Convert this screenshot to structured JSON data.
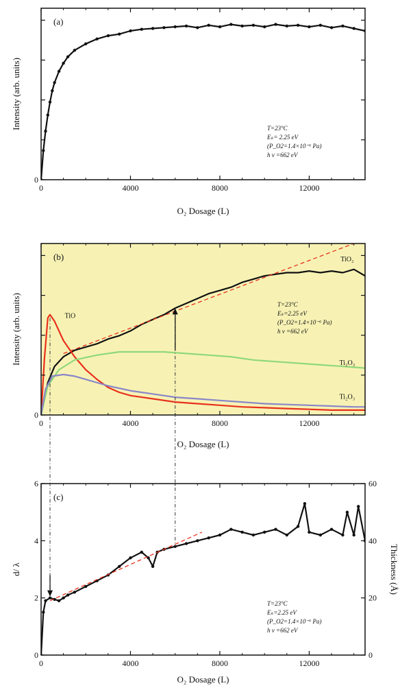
{
  "chart_data": [
    {
      "id": "a",
      "type": "line",
      "panel_label": "(a)",
      "xlabel": "O₂ Dosage (L)",
      "ylabel": "Intensity (arb. units)",
      "xlim": [
        0,
        14500
      ],
      "ylim": [
        0,
        1.06
      ],
      "x_ticks": [
        0,
        4000,
        8000,
        12000
      ],
      "x_tick_labels": [
        "0",
        "4000",
        "8000",
        "12000"
      ],
      "y_ticks": [
        0
      ],
      "y_tick_labels": [
        "0"
      ],
      "annotations": [
        "T=23°C",
        "Eₖ= 2.25 eV",
        "(P_O2=1.4×10⁻⁶ Pa)",
        "h ν =662 eV"
      ],
      "series": [
        {
          "color": "#111111",
          "markers": true,
          "points": [
            [
              0,
              0.0
            ],
            [
              100,
              0.18
            ],
            [
              200,
              0.3
            ],
            [
              300,
              0.4
            ],
            [
              400,
              0.48
            ],
            [
              500,
              0.55
            ],
            [
              600,
              0.6
            ],
            [
              800,
              0.67
            ],
            [
              1000,
              0.72
            ],
            [
              1200,
              0.76
            ],
            [
              1500,
              0.8
            ],
            [
              2000,
              0.84
            ],
            [
              2500,
              0.87
            ],
            [
              3000,
              0.89
            ],
            [
              3500,
              0.9
            ],
            [
              4000,
              0.92
            ],
            [
              4500,
              0.93
            ],
            [
              5000,
              0.935
            ],
            [
              5500,
              0.94
            ],
            [
              6000,
              0.945
            ],
            [
              6500,
              0.95
            ],
            [
              7000,
              0.94
            ],
            [
              7500,
              0.955
            ],
            [
              8000,
              0.945
            ],
            [
              8500,
              0.96
            ],
            [
              9000,
              0.95
            ],
            [
              9500,
              0.955
            ],
            [
              10000,
              0.945
            ],
            [
              10500,
              0.96
            ],
            [
              11000,
              0.95
            ],
            [
              11500,
              0.955
            ],
            [
              12000,
              0.945
            ],
            [
              12500,
              0.955
            ],
            [
              13000,
              0.94
            ],
            [
              13500,
              0.95
            ],
            [
              14000,
              0.935
            ],
            [
              14500,
              0.92
            ]
          ]
        }
      ]
    },
    {
      "id": "b",
      "type": "line",
      "panel_label": "(b)",
      "xlabel": "O₂ Dosage (L)",
      "ylabel": "Intensity (arb. units)",
      "xlim": [
        0,
        14500
      ],
      "ylim": [
        0,
        1.06
      ],
      "x_ticks": [
        0,
        4000,
        8000,
        12000
      ],
      "x_tick_labels": [
        "0",
        "4000",
        "8000",
        "12000"
      ],
      "y_ticks": [
        0
      ],
      "y_tick_labels": [
        "0"
      ],
      "background": "#f7f2b4",
      "annotations": [
        "T=23°C",
        "Eₖ=2.25 eV",
        "(P_O2=1.4×10⁻⁶ Pa)",
        "h ν =662 eV"
      ],
      "series": [
        {
          "name": "TiO₂",
          "color": "#111111",
          "markers": false,
          "points": [
            [
              0,
              0.0
            ],
            [
              300,
              0.2
            ],
            [
              600,
              0.3
            ],
            [
              1000,
              0.36
            ],
            [
              1500,
              0.4
            ],
            [
              2000,
              0.42
            ],
            [
              2500,
              0.44
            ],
            [
              3000,
              0.47
            ],
            [
              3500,
              0.49
            ],
            [
              4000,
              0.52
            ],
            [
              4500,
              0.56
            ],
            [
              5000,
              0.59
            ],
            [
              5500,
              0.62
            ],
            [
              6000,
              0.66
            ],
            [
              6500,
              0.69
            ],
            [
              7000,
              0.72
            ],
            [
              7500,
              0.75
            ],
            [
              8000,
              0.77
            ],
            [
              8500,
              0.79
            ],
            [
              9000,
              0.82
            ],
            [
              9500,
              0.84
            ],
            [
              10000,
              0.86
            ],
            [
              10500,
              0.87
            ],
            [
              11000,
              0.88
            ],
            [
              11500,
              0.88
            ],
            [
              12000,
              0.89
            ],
            [
              12500,
              0.88
            ],
            [
              13000,
              0.89
            ],
            [
              13500,
              0.88
            ],
            [
              14000,
              0.9
            ],
            [
              14500,
              0.86
            ]
          ]
        },
        {
          "name": "TiO",
          "color": "#e8301c",
          "markers": false,
          "points": [
            [
              0,
              0.0
            ],
            [
              150,
              0.35
            ],
            [
              300,
              0.6
            ],
            [
              400,
              0.62
            ],
            [
              600,
              0.58
            ],
            [
              800,
              0.52
            ],
            [
              1000,
              0.46
            ],
            [
              1500,
              0.36
            ],
            [
              2000,
              0.28
            ],
            [
              2500,
              0.22
            ],
            [
              3000,
              0.17
            ],
            [
              3500,
              0.14
            ],
            [
              4000,
              0.12
            ],
            [
              5000,
              0.1
            ],
            [
              6000,
              0.08
            ],
            [
              7000,
              0.07
            ],
            [
              8000,
              0.06
            ],
            [
              9000,
              0.05
            ],
            [
              10000,
              0.045
            ],
            [
              11000,
              0.04
            ],
            [
              12000,
              0.035
            ],
            [
              13000,
              0.03
            ],
            [
              14000,
              0.03
            ],
            [
              14500,
              0.03
            ]
          ]
        },
        {
          "name": "Ti₂O₃",
          "color": "#8fd87a",
          "markers": false,
          "points": [
            [
              0,
              0.0
            ],
            [
              300,
              0.18
            ],
            [
              800,
              0.28
            ],
            [
              1500,
              0.34
            ],
            [
              2500,
              0.37
            ],
            [
              3500,
              0.39
            ],
            [
              4500,
              0.39
            ],
            [
              5500,
              0.39
            ],
            [
              6500,
              0.38
            ],
            [
              7500,
              0.37
            ],
            [
              8500,
              0.36
            ],
            [
              9500,
              0.34
            ],
            [
              10500,
              0.33
            ],
            [
              11500,
              0.32
            ],
            [
              12500,
              0.31
            ],
            [
              13500,
              0.3
            ],
            [
              14500,
              0.29
            ]
          ]
        },
        {
          "name": "Ti₂O₃",
          "color": "#8a86c8",
          "markers": false,
          "points": [
            [
              0,
              0.0
            ],
            [
              200,
              0.16
            ],
            [
              500,
              0.24
            ],
            [
              1000,
              0.25
            ],
            [
              1500,
              0.24
            ],
            [
              2000,
              0.22
            ],
            [
              3000,
              0.18
            ],
            [
              4000,
              0.15
            ],
            [
              5000,
              0.13
            ],
            [
              6000,
              0.11
            ],
            [
              7000,
              0.1
            ],
            [
              8000,
              0.09
            ],
            [
              9000,
              0.08
            ],
            [
              10000,
              0.07
            ],
            [
              11000,
              0.065
            ],
            [
              12000,
              0.06
            ],
            [
              13000,
              0.055
            ],
            [
              14000,
              0.05
            ],
            [
              14500,
              0.05
            ]
          ]
        },
        {
          "color": "#e8301c",
          "dashed": true,
          "markers": false,
          "points": [
            [
              1000,
              0.38
            ],
            [
              14000,
              1.06
            ]
          ]
        }
      ],
      "series_labels": [
        {
          "text": "TiO₂",
          "x": 13700,
          "y": 0.95
        },
        {
          "text": "TiO",
          "x": 1300,
          "y": 0.6
        },
        {
          "text": "Ti₂O₃",
          "x": 13700,
          "y": 0.31
        },
        {
          "text": "Ti₂O₃",
          "x": 13700,
          "y": 0.1
        }
      ],
      "arrow": {
        "x": 6000,
        "y_from": 0.4,
        "y_to": 0.66
      }
    },
    {
      "id": "c",
      "type": "line",
      "panel_label": "(c)",
      "xlabel": "O₂ Dosage (L)",
      "ylabel": "d/ λ",
      "y2label": "Thickness (Å)",
      "xlim": [
        0,
        14500
      ],
      "ylim": [
        0,
        6
      ],
      "y2lim": [
        0,
        60
      ],
      "x_ticks": [
        0,
        4000,
        8000,
        12000
      ],
      "x_tick_labels": [
        "0",
        "4000",
        "8000",
        "12000"
      ],
      "y_ticks": [
        0,
        2,
        4,
        6
      ],
      "y_tick_labels": [
        "0",
        "2",
        "4",
        "6"
      ],
      "y2_ticks": [
        0,
        20,
        40,
        60
      ],
      "y2_tick_labels": [
        "0",
        "20",
        "40",
        "60"
      ],
      "annotations": [
        "T=23°C",
        "Eₖ=2.25 eV",
        "(P_O2=1.4×10⁻⁶ Pa)",
        "h ν =662 eV"
      ],
      "series": [
        {
          "color": "#111111",
          "markers": true,
          "points": [
            [
              0,
              0.0
            ],
            [
              100,
              1.5
            ],
            [
              200,
              1.9
            ],
            [
              400,
              2.0
            ],
            [
              600,
              1.95
            ],
            [
              800,
              1.9
            ],
            [
              1000,
              2.0
            ],
            [
              1200,
              2.1
            ],
            [
              1500,
              2.2
            ],
            [
              2000,
              2.4
            ],
            [
              2500,
              2.6
            ],
            [
              3000,
              2.8
            ],
            [
              3500,
              3.1
            ],
            [
              4000,
              3.4
            ],
            [
              4500,
              3.6
            ],
            [
              4800,
              3.4
            ],
            [
              5000,
              3.1
            ],
            [
              5200,
              3.6
            ],
            [
              5500,
              3.7
            ],
            [
              6000,
              3.8
            ],
            [
              6500,
              3.9
            ],
            [
              7000,
              4.0
            ],
            [
              7500,
              4.1
            ],
            [
              8000,
              4.2
            ],
            [
              8500,
              4.4
            ],
            [
              9000,
              4.3
            ],
            [
              9500,
              4.2
            ],
            [
              10000,
              4.3
            ],
            [
              10500,
              4.4
            ],
            [
              11000,
              4.2
            ],
            [
              11500,
              4.5
            ],
            [
              11800,
              5.3
            ],
            [
              12000,
              4.3
            ],
            [
              12500,
              4.2
            ],
            [
              13000,
              4.4
            ],
            [
              13500,
              4.2
            ],
            [
              13700,
              5.0
            ],
            [
              14000,
              4.2
            ],
            [
              14200,
              5.2
            ],
            [
              14500,
              4.0
            ]
          ]
        },
        {
          "color": "#e8301c",
          "dashed": true,
          "markers": false,
          "points": [
            [
              400,
              1.9
            ],
            [
              7200,
              4.3
            ]
          ]
        }
      ],
      "arrow": {
        "x": 400,
        "y_from": 2.8,
        "y_to": 2.05
      }
    }
  ]
}
